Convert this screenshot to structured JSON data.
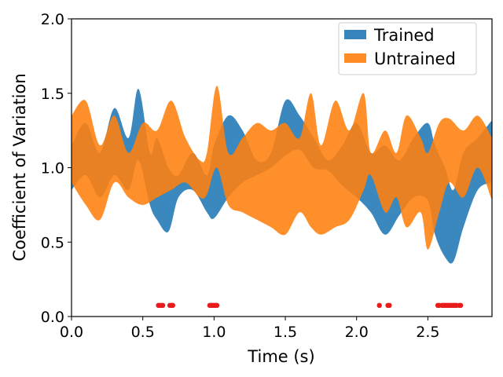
{
  "chart_data": {
    "type": "area",
    "title": "",
    "xlabel": "Time (s)",
    "ylabel": "Coefficient of Variation",
    "xlim": [
      0.0,
      2.95
    ],
    "ylim": [
      0.0,
      2.0
    ],
    "xticks": [
      0.0,
      0.5,
      1.0,
      1.5,
      2.0,
      2.5
    ],
    "xtick_labels": [
      "0.0",
      "0.5",
      "1.0",
      "1.5",
      "2.0",
      "2.5"
    ],
    "yticks": [
      0.0,
      0.5,
      1.0,
      1.5,
      2.0
    ],
    "ytick_labels": [
      "0.0",
      "0.5",
      "1.0",
      "1.5",
      "2.0"
    ],
    "grid": false,
    "legend_position": "top-right",
    "series": [
      {
        "name": "Trained",
        "color": "#1f77b4",
        "x": [
          0.0,
          0.1,
          0.2,
          0.3,
          0.4,
          0.47,
          0.55,
          0.6,
          0.68,
          0.75,
          0.85,
          0.95,
          1.0,
          1.1,
          1.2,
          1.3,
          1.4,
          1.5,
          1.6,
          1.7,
          1.8,
          1.9,
          2.0,
          2.1,
          2.2,
          2.3,
          2.4,
          2.5,
          2.55,
          2.62,
          2.68,
          2.75,
          2.85,
          2.95
        ],
        "upper": [
          1.15,
          1.3,
          1.1,
          1.4,
          1.2,
          1.53,
          1.1,
          1.2,
          1.0,
          0.95,
          1.1,
          0.95,
          1.15,
          1.35,
          1.25,
          1.05,
          1.1,
          1.45,
          1.35,
          1.2,
          1.05,
          1.15,
          1.3,
          1.1,
          1.15,
          1.05,
          1.2,
          1.3,
          1.15,
          1.0,
          0.85,
          1.1,
          1.2,
          1.32
        ],
        "lower": [
          0.85,
          0.95,
          0.8,
          0.95,
          0.85,
          1.05,
          0.75,
          0.65,
          0.57,
          0.8,
          0.85,
          0.7,
          0.66,
          0.8,
          0.9,
          0.95,
          1.0,
          1.08,
          1.12,
          1.0,
          0.98,
          0.88,
          0.8,
          0.7,
          0.55,
          0.68,
          0.8,
          0.78,
          0.55,
          0.4,
          0.37,
          0.6,
          0.85,
          0.9
        ]
      },
      {
        "name": "Untrained",
        "color": "#ff7f0e",
        "x": [
          0.0,
          0.1,
          0.2,
          0.3,
          0.4,
          0.5,
          0.6,
          0.7,
          0.8,
          0.9,
          0.95,
          1.02,
          1.1,
          1.2,
          1.3,
          1.4,
          1.5,
          1.6,
          1.68,
          1.75,
          1.85,
          1.95,
          2.05,
          2.1,
          2.2,
          2.28,
          2.35,
          2.45,
          2.5,
          2.58,
          2.65,
          2.75,
          2.85,
          2.95
        ],
        "upper": [
          1.35,
          1.45,
          1.15,
          1.35,
          1.1,
          1.3,
          1.25,
          1.45,
          1.2,
          1.05,
          1.1,
          1.55,
          1.1,
          1.2,
          1.3,
          1.25,
          1.3,
          1.2,
          1.5,
          1.15,
          1.45,
          1.25,
          1.5,
          1.1,
          1.25,
          1.1,
          1.35,
          1.2,
          1.1,
          1.3,
          1.33,
          1.25,
          1.35,
          1.2
        ],
        "lower": [
          0.9,
          0.75,
          0.65,
          0.9,
          0.8,
          0.75,
          0.8,
          0.85,
          0.9,
          0.8,
          0.82,
          1.0,
          0.75,
          0.7,
          0.65,
          0.6,
          0.55,
          0.7,
          0.6,
          0.55,
          0.6,
          0.65,
          0.85,
          0.95,
          0.7,
          0.8,
          0.6,
          0.7,
          0.45,
          0.7,
          0.9,
          0.8,
          1.0,
          0.78
        ]
      }
    ],
    "markers": {
      "color": "#e81c1c",
      "y": 0.075,
      "x": [
        0.61,
        0.62,
        0.63,
        0.64,
        0.69,
        0.7,
        0.71,
        0.97,
        0.98,
        0.99,
        1.0,
        1.01,
        1.02,
        2.16,
        2.22,
        2.23,
        2.57,
        2.58,
        2.6,
        2.61,
        2.62,
        2.63,
        2.64,
        2.65,
        2.66,
        2.67,
        2.68,
        2.69,
        2.7,
        2.72,
        2.73
      ]
    }
  }
}
